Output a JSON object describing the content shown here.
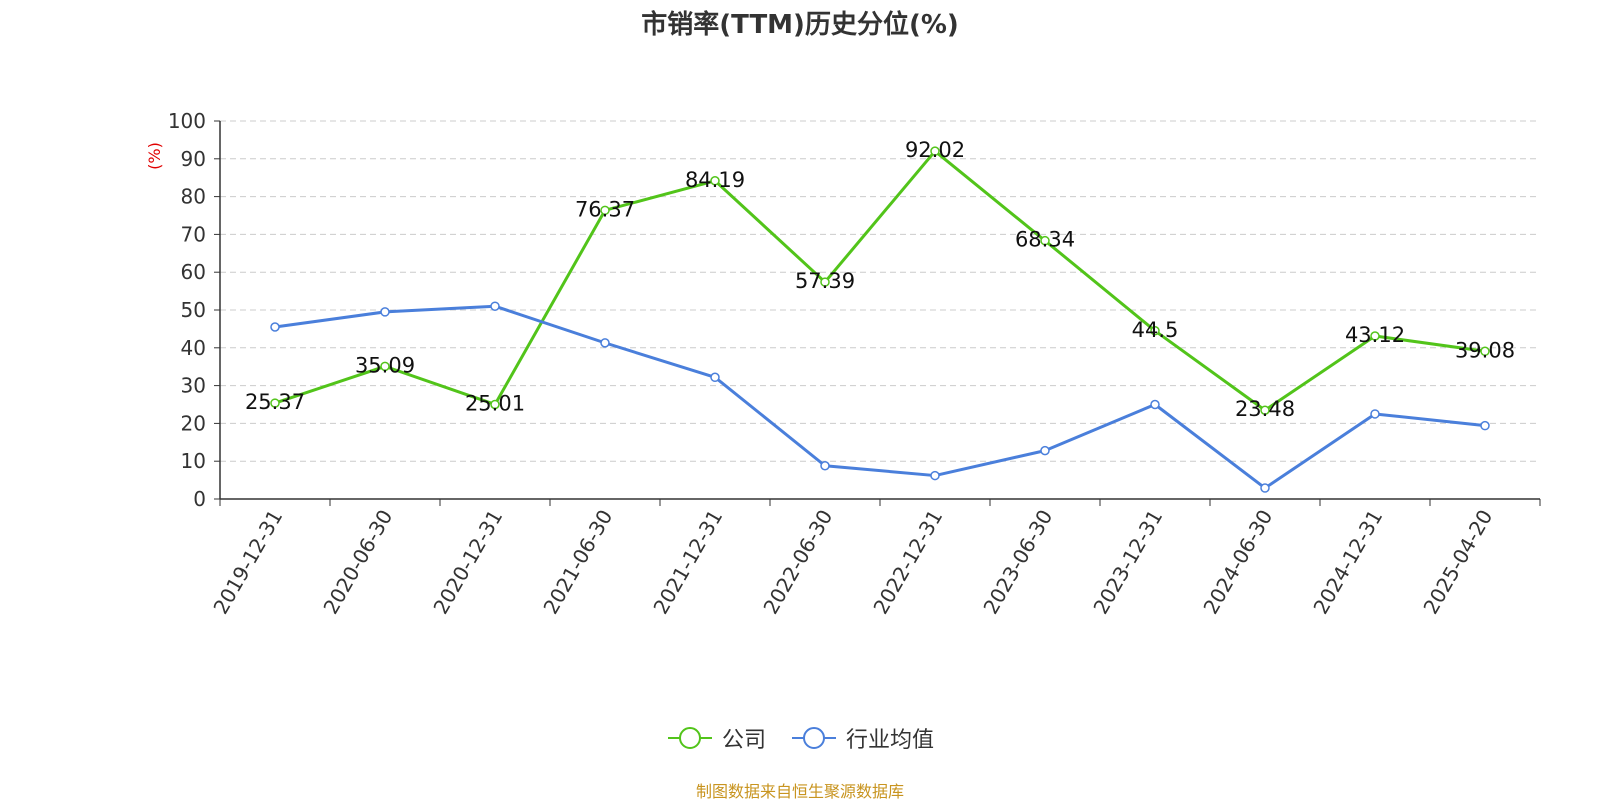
{
  "chart_data": {
    "type": "line",
    "title": "市销率(TTM)历史分位(%)",
    "ylabel": "(%)",
    "xlabel": "",
    "categories": [
      "2019-12-31",
      "2020-06-30",
      "2020-12-31",
      "2021-06-30",
      "2021-12-31",
      "2022-06-30",
      "2022-12-31",
      "2023-06-30",
      "2023-12-31",
      "2024-06-30",
      "2024-12-31",
      "2025-04-20"
    ],
    "ylim": [
      0,
      100
    ],
    "yticks": [
      0,
      10,
      20,
      30,
      40,
      50,
      60,
      70,
      80,
      90,
      100
    ],
    "grid": true,
    "legend_position": "bottom",
    "series": [
      {
        "name": "公司",
        "color": "#52c41a",
        "show_labels": true,
        "values": [
          25.37,
          35.09,
          25.01,
          76.37,
          84.19,
          57.39,
          92.02,
          68.34,
          44.5,
          23.48,
          43.12,
          39.08
        ]
      },
      {
        "name": "行业均值",
        "color": "#4a7fdb",
        "show_labels": false,
        "values": [
          45.5,
          49.5,
          51.0,
          41.3,
          32.2,
          8.8,
          6.2,
          12.8,
          25.0,
          2.9,
          22.5,
          19.4
        ]
      }
    ]
  },
  "source_note": "制图数据来自恒生聚源数据库"
}
